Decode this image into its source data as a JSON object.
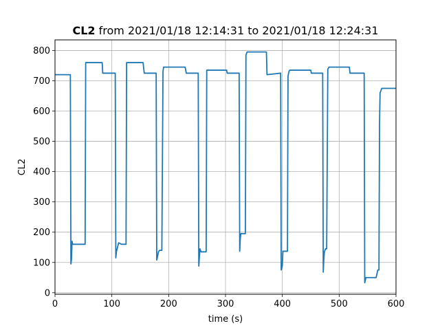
{
  "chart_data": {
    "type": "line",
    "title_bold": "CL2",
    "title_rest": " from 2021/01/18 12:14:31 to 2021/01/18 12:24:31",
    "xlabel": "time (s)",
    "ylabel": "CL2",
    "xlim": [
      0,
      600
    ],
    "ylim": [
      -5,
      835
    ],
    "xticks": [
      0,
      100,
      200,
      300,
      400,
      500,
      600
    ],
    "yticks": [
      0,
      100,
      200,
      300,
      400,
      500,
      600,
      700,
      800
    ],
    "grid": true,
    "series": [
      {
        "color": "#1f77b4",
        "x": [
          0,
          27,
          28,
          29,
          30,
          31,
          33,
          53,
          54,
          83,
          84,
          106,
          107,
          108,
          110,
          112,
          117,
          118,
          125,
          126,
          155,
          157,
          178,
          179,
          180,
          182,
          184,
          188,
          190,
          191,
          229,
          231,
          252,
          253,
          255,
          257,
          266,
          267,
          302,
          303,
          324,
          325,
          326,
          327,
          329,
          335,
          336,
          338,
          339,
          372,
          373,
          397,
          398,
          400,
          401,
          409,
          410,
          411,
          412,
          413,
          450,
          451,
          471,
          472,
          473,
          474,
          476,
          478,
          480,
          482,
          483,
          485,
          518,
          519,
          544,
          545,
          547,
          548,
          565,
          568,
          570,
          571,
          572,
          575,
          600
        ],
        "y": [
          720,
          720,
          95,
          110,
          170,
          160,
          160,
          160,
          760,
          760,
          725,
          725,
          115,
          135,
          150,
          165,
          160,
          160,
          160,
          760,
          760,
          725,
          725,
          108,
          115,
          135,
          140,
          140,
          730,
          745,
          745,
          725,
          725,
          88,
          145,
          135,
          135,
          735,
          735,
          725,
          725,
          137,
          180,
          195,
          195,
          195,
          785,
          795,
          795,
          795,
          720,
          725,
          75,
          90,
          137,
          137,
          715,
          725,
          732,
          735,
          735,
          725,
          725,
          68,
          110,
          135,
          145,
          145,
          738,
          745,
          745,
          745,
          745,
          725,
          725,
          33,
          50,
          50,
          50,
          75,
          75,
          560,
          660,
          675,
          675
        ]
      }
    ]
  }
}
